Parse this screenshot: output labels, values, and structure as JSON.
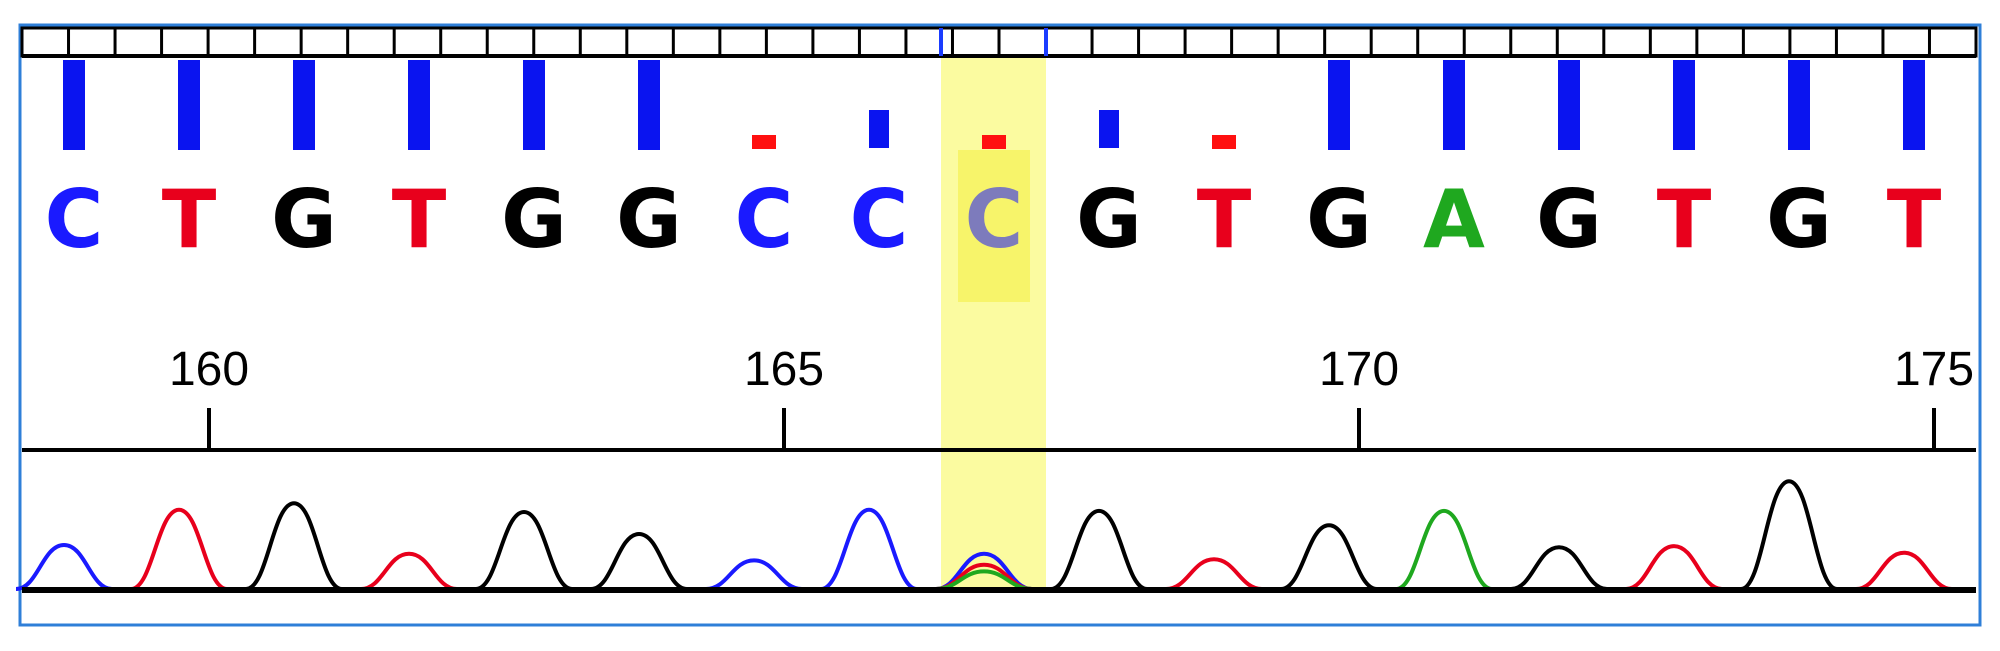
{
  "sequence": [
    "C",
    "T",
    "G",
    "T",
    "G",
    "G",
    "C",
    "C",
    "C",
    "G",
    "T",
    "G",
    "A",
    "G",
    "T",
    "G",
    "T"
  ],
  "quality_levels": [
    "high",
    "high",
    "high",
    "high",
    "high",
    "high",
    "low",
    "medium",
    "low",
    "medium",
    "low",
    "high",
    "high",
    "high",
    "high",
    "high",
    "high"
  ],
  "positions": {
    "first_base_number": 159,
    "labels": [
      "160",
      "165",
      "170",
      "175"
    ]
  },
  "selected_base_index": 8,
  "base_colors": {
    "A": "#1fa81f",
    "C": "#1a1aff",
    "G": "#000000",
    "T": "#e8001c"
  },
  "quality_colors": {
    "high": "#0a14f0",
    "medium": "#0a14f0",
    "low": "#ff1010"
  },
  "selection_color": "#fbfba0",
  "frame_color": "#2f7fd8",
  "chromatogram": {
    "peaks": [
      {
        "base": "C",
        "height": 0.4
      },
      {
        "base": "T",
        "height": 0.72
      },
      {
        "base": "G",
        "height": 0.78
      },
      {
        "base": "T",
        "height": 0.32
      },
      {
        "base": "G",
        "height": 0.7
      },
      {
        "base": "G",
        "height": 0.5
      },
      {
        "base": "C",
        "height": 0.26
      },
      {
        "base": "C",
        "height": 0.72
      },
      {
        "base": "C",
        "height": 0.32
      },
      {
        "base": "G",
        "height": 0.71
      },
      {
        "base": "T",
        "height": 0.27
      },
      {
        "base": "G",
        "height": 0.58
      },
      {
        "base": "A",
        "height": 0.71
      },
      {
        "base": "G",
        "height": 0.38
      },
      {
        "base": "T",
        "height": 0.39
      },
      {
        "base": "G",
        "height": 0.98
      },
      {
        "base": "T",
        "height": 0.33
      }
    ],
    "secondary_peaks": [
      {
        "index": 8,
        "base": "T",
        "height": 0.22
      },
      {
        "index": 8,
        "base": "A",
        "height": 0.16
      }
    ]
  }
}
